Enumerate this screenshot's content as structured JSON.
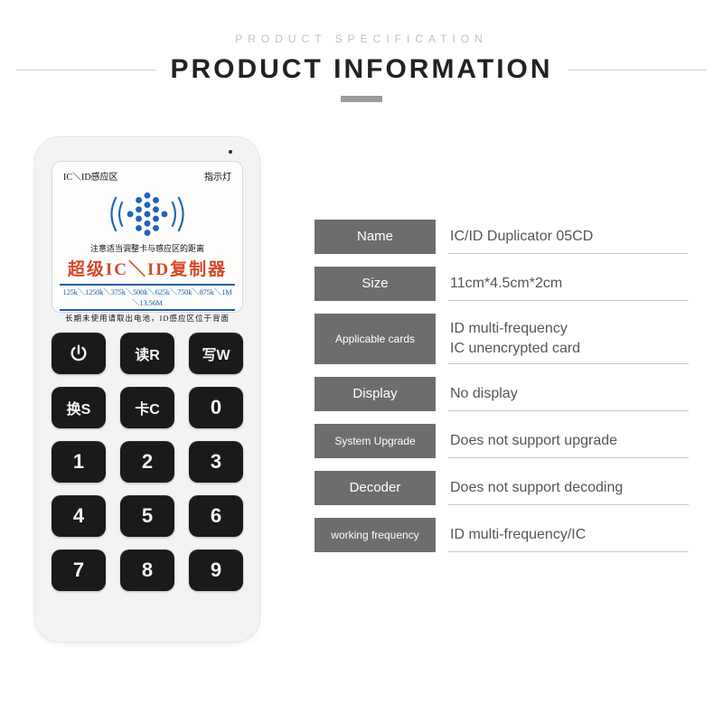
{
  "header": {
    "subtitle": "PRODUCT SPECIFICATION",
    "title": "PRODUCT INFORMATION"
  },
  "colors": {
    "label_bg": "#6d6d6d",
    "divider": "#c9c9c9",
    "accent_red": "#d34a29",
    "accent_blue": "#1a5fae",
    "sensor_blue": "#1f64b8",
    "key_bg": "#1a1a1a",
    "device_bg": "#f2f3f3"
  },
  "device": {
    "screen": {
      "top_left": "IC＼ID感应区",
      "top_right": "指示灯",
      "mid_note": "注意适当调整卡与感应区的距离",
      "title": "超级IC＼ID复制器",
      "freq_line": "125k＼1250k＼375k＼500k＼625k＼750k＼875k＼1M＼13.56M",
      "bottom_note": "长期未使用请取出电池，ID感应区位于背面"
    },
    "keys": [
      {
        "id": "power",
        "label": "",
        "icon": "power"
      },
      {
        "id": "read",
        "label": "读R"
      },
      {
        "id": "write",
        "label": "写W"
      },
      {
        "id": "swap",
        "label": "换S"
      },
      {
        "id": "card",
        "label": "卡C"
      },
      {
        "id": "0",
        "label": "0"
      },
      {
        "id": "1",
        "label": "1"
      },
      {
        "id": "2",
        "label": "2"
      },
      {
        "id": "3",
        "label": "3"
      },
      {
        "id": "4",
        "label": "4"
      },
      {
        "id": "5",
        "label": "5"
      },
      {
        "id": "6",
        "label": "6"
      },
      {
        "id": "7",
        "label": "7"
      },
      {
        "id": "8",
        "label": "8"
      },
      {
        "id": "9",
        "label": "9"
      }
    ]
  },
  "specs": [
    {
      "label": "Name",
      "value": "IC/ID Duplicator 05CD",
      "label_fontsize": 15
    },
    {
      "label": "Size",
      "value": "11cm*4.5cm*2cm",
      "label_fontsize": 15
    },
    {
      "label": "Applicable cards",
      "value": "ID multi-frequency\nIC unencrypted card",
      "label_fontsize": 12
    },
    {
      "label": "Display",
      "value": "No display",
      "label_fontsize": 15
    },
    {
      "label": "System Upgrade",
      "value": "Does not support upgrade",
      "label_fontsize": 12
    },
    {
      "label": "Decoder",
      "value": "Does not support decoding",
      "label_fontsize": 15
    },
    {
      "label": "working frequency",
      "value": "ID multi-frequency/IC",
      "label_fontsize": 12
    }
  ]
}
